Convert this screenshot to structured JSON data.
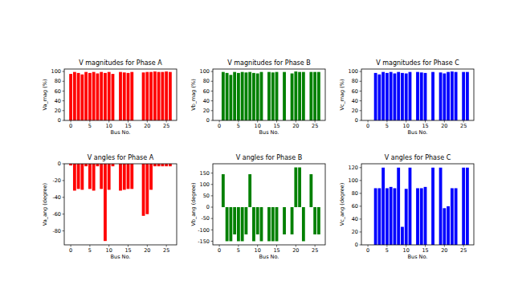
{
  "chart_data": [
    {
      "type": "bar",
      "title": "V magnitudes for Phase A",
      "x_label": "Bus No.",
      "y_label": "Va_mag (%)",
      "color": "#ff0000",
      "x": [
        0,
        1,
        2,
        3,
        4,
        5,
        6,
        7,
        8,
        9,
        10,
        11,
        12,
        13,
        14,
        15,
        16,
        17,
        18,
        19,
        20,
        21,
        22,
        23,
        24,
        25,
        26
      ],
      "values": [
        95,
        99,
        97,
        94,
        99,
        97,
        99,
        96,
        99,
        97,
        99,
        95,
        null,
        99,
        98,
        97,
        99,
        null,
        null,
        98,
        99,
        99,
        100,
        99,
        99,
        100,
        99
      ],
      "xlim": [
        -1.7,
        27.7
      ],
      "xticks": [
        0,
        5,
        10,
        15,
        20,
        25
      ],
      "ylim": [
        0,
        105
      ],
      "yticks": [
        0,
        20,
        40,
        60,
        80,
        100
      ]
    },
    {
      "type": "bar",
      "title": "V magnitudes for Phase B",
      "x_label": "Bus No.",
      "y_label": "Vb_mag (%)",
      "color": "#008000",
      "x": [
        0,
        1,
        2,
        3,
        4,
        5,
        6,
        7,
        8,
        9,
        10,
        11,
        12,
        13,
        14,
        15,
        16,
        17,
        18,
        19,
        20,
        21,
        22,
        23,
        24,
        25,
        26
      ],
      "values": [
        null,
        99,
        97,
        93,
        99,
        97,
        99,
        98,
        99,
        97,
        96,
        99,
        null,
        99,
        98,
        99,
        null,
        99,
        null,
        96,
        100,
        99,
        99,
        null,
        99,
        99,
        99
      ],
      "xlim": [
        -1.7,
        27.7
      ],
      "xticks": [
        0,
        5,
        10,
        15,
        20,
        25
      ],
      "ylim": [
        0,
        105
      ],
      "yticks": [
        0,
        20,
        40,
        60,
        80,
        100
      ]
    },
    {
      "type": "bar",
      "title": "V magnitudes for Phase C",
      "x_label": "Bus No.",
      "y_label": "Vc_mag (%)",
      "color": "#0000ff",
      "x": [
        0,
        1,
        2,
        3,
        4,
        5,
        6,
        7,
        8,
        9,
        10,
        11,
        12,
        13,
        14,
        15,
        16,
        17,
        18,
        19,
        20,
        21,
        22,
        23,
        24,
        25,
        26
      ],
      "values": [
        null,
        null,
        97,
        94,
        99,
        97,
        99,
        96,
        99,
        97,
        96,
        99,
        null,
        99,
        98,
        97,
        null,
        99,
        null,
        98,
        96,
        99,
        100,
        99,
        null,
        99,
        99
      ],
      "xlim": [
        -1.7,
        27.7
      ],
      "xticks": [
        0,
        5,
        10,
        15,
        20,
        25
      ],
      "ylim": [
        0,
        105
      ],
      "yticks": [
        0,
        20,
        40,
        60,
        80,
        100
      ]
    },
    {
      "type": "bar",
      "title": "V angles for Phase A",
      "x_label": "Bus No.",
      "y_label": "Va_ang (degree)",
      "color": "#ff0000",
      "x": [
        0,
        1,
        2,
        3,
        4,
        5,
        6,
        7,
        8,
        9,
        10,
        11,
        12,
        13,
        14,
        15,
        16,
        17,
        18,
        19,
        20,
        21,
        22,
        23,
        24,
        25,
        26
      ],
      "values": [
        -2,
        -32,
        -30,
        -31,
        -3,
        -30,
        -32,
        -3,
        -30,
        -92,
        -31,
        -3,
        null,
        -32,
        -31,
        -30,
        -30,
        null,
        null,
        -62,
        -60,
        -31,
        -3,
        -3,
        -3,
        -3,
        -3
      ],
      "xlim": [
        -1.7,
        27.7
      ],
      "xticks": [
        0,
        5,
        10,
        15,
        20,
        25
      ],
      "ylim": [
        -96.6,
        0
      ],
      "yticks": [
        -80,
        -60,
        -40,
        -20,
        0
      ]
    },
    {
      "type": "bar",
      "title": "V angles for Phase B",
      "x_label": "Bus No.",
      "y_label": "Vb_ang (degree)",
      "color": "#008000",
      "x": [
        0,
        1,
        2,
        3,
        4,
        5,
        6,
        7,
        8,
        9,
        10,
        11,
        12,
        13,
        14,
        15,
        16,
        17,
        18,
        19,
        20,
        21,
        22,
        23,
        24,
        25,
        26
      ],
      "values": [
        null,
        145,
        -150,
        -150,
        -120,
        -150,
        -150,
        -120,
        145,
        -150,
        -120,
        -150,
        null,
        -150,
        -150,
        -150,
        null,
        -120,
        null,
        -120,
        175,
        175,
        -150,
        null,
        145,
        -120,
        -120
      ],
      "xlim": [
        -1.7,
        27.7
      ],
      "xticks": [
        0,
        5,
        10,
        15,
        20,
        25
      ],
      "ylim": [
        -166,
        191
      ],
      "yticks": [
        -150,
        -100,
        -50,
        0,
        50,
        100,
        150
      ]
    },
    {
      "type": "bar",
      "title": "V angles for Phase C",
      "x_label": "Bus No.",
      "y_label": "Vc_ang (degree)",
      "color": "#0000ff",
      "x": [
        0,
        1,
        2,
        3,
        4,
        5,
        6,
        7,
        8,
        9,
        10,
        11,
        12,
        13,
        14,
        15,
        16,
        17,
        18,
        19,
        20,
        21,
        22,
        23,
        24,
        25,
        26
      ],
      "values": [
        null,
        null,
        88,
        88,
        120,
        88,
        90,
        88,
        120,
        28,
        87,
        120,
        null,
        88,
        88,
        90,
        null,
        120,
        null,
        120,
        57,
        60,
        88,
        88,
        null,
        120,
        120
      ],
      "xlim": [
        -1.7,
        27.7
      ],
      "xticks": [
        0,
        5,
        10,
        15,
        20,
        25
      ],
      "ylim": [
        0,
        126
      ],
      "yticks": [
        0,
        20,
        40,
        60,
        80,
        100,
        120
      ]
    }
  ]
}
